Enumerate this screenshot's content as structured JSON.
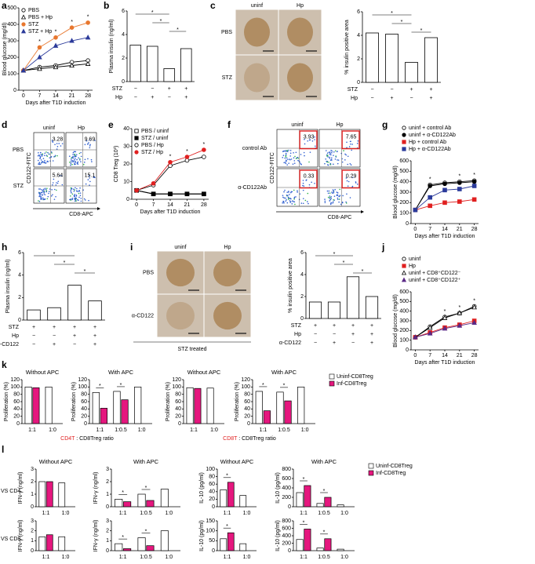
{
  "chart_data": [
    {
      "panel": "a",
      "type": "line",
      "ylabel": "Blood glucose (mg/dl)",
      "xlabel": "Days after T1D induction",
      "x": [
        0,
        7,
        14,
        21,
        28
      ],
      "xlim": [
        -2,
        30
      ],
      "xticks": [
        0,
        7,
        14,
        21,
        28
      ],
      "ylim": [
        0,
        500
      ],
      "yticks": [
        0,
        100,
        200,
        300,
        400,
        500
      ],
      "series": [
        {
          "name": "PBS",
          "marker": "circle",
          "color": "#000000",
          "fill": "#ffffff",
          "values": [
            120,
            140,
            150,
            170,
            180
          ]
        },
        {
          "name": "PBS + Hp",
          "marker": "triangle",
          "color": "#000000",
          "fill": "#ffffff",
          "values": [
            120,
            130,
            140,
            150,
            160
          ]
        },
        {
          "name": "STZ",
          "marker": "circle",
          "color": "#e8772e",
          "fill": "#e8772e",
          "values": [
            120,
            260,
            320,
            380,
            410
          ]
        },
        {
          "name": "STZ + Hp",
          "marker": "triangle",
          "color": "#2b3a9a",
          "fill": "#2b3a9a",
          "values": [
            120,
            200,
            270,
            300,
            320
          ]
        }
      ],
      "annotations": [
        "*",
        "*",
        "*",
        "*"
      ]
    },
    {
      "panel": "b",
      "type": "bar",
      "ylabel": "Plasma insulin (ng/ml)",
      "ylim": [
        0,
        6
      ],
      "yticks": [
        0,
        2,
        4,
        6
      ],
      "values": [
        3.1,
        3.0,
        1.1,
        2.8
      ],
      "color": "#000000",
      "fill": "#ffffff",
      "conditions": [
        {
          "name": "STZ",
          "signs": [
            "−",
            "−",
            "+",
            "+"
          ]
        },
        {
          "name": "Hp",
          "signs": [
            "−",
            "+",
            "−",
            "+"
          ]
        }
      ],
      "annotations": [
        "*",
        "*",
        "*"
      ]
    },
    {
      "panel": "c",
      "type": "image",
      "rows": [
        "PBS",
        "STZ"
      ],
      "cols": [
        "uninf",
        "Hp"
      ]
    },
    {
      "type": "bar",
      "ylabel": "% insulin positive area",
      "ylim": [
        0,
        6
      ],
      "yticks": [
        0,
        2,
        4,
        6
      ],
      "values": [
        4.2,
        4.1,
        1.7,
        3.8
      ],
      "color": "#000000",
      "fill": "#ffffff",
      "conditions": [
        {
          "name": "STZ",
          "signs": [
            "−",
            "−",
            "+",
            "+"
          ]
        },
        {
          "name": "Hp",
          "signs": [
            "−",
            "+",
            "−",
            "+"
          ]
        }
      ],
      "annotations": [
        "*",
        "*",
        "*"
      ]
    },
    {
      "panel": "d",
      "type": "flow",
      "rows": [
        "PBS",
        "STZ"
      ],
      "cols": [
        "uninf",
        "Hp"
      ],
      "values": [
        [
          "3.28",
          "9.69"
        ],
        [
          "5.64",
          "15.1"
        ]
      ],
      "ylabel": "CD122-FITC",
      "xlabel": "CD8-APC",
      "boxed": false
    },
    {
      "panel": "e",
      "type": "line",
      "ylabel": "CD8 Treg (10³)",
      "xlabel": "Days after T1D induction",
      "x": [
        0,
        7,
        14,
        21,
        28
      ],
      "xlim": [
        -2,
        30
      ],
      "xticks": [
        0,
        7,
        14,
        21,
        28
      ],
      "ylim": [
        0,
        40
      ],
      "yticks": [
        0,
        10,
        20,
        30,
        40
      ],
      "series": [
        {
          "name": "PBS / uninf",
          "marker": "square",
          "color": "#000000",
          "fill": "#ffffff",
          "values": [
            5,
            3,
            3,
            3,
            3
          ]
        },
        {
          "name": "STZ / uninf",
          "marker": "square",
          "color": "#000000",
          "fill": "#000000",
          "values": [
            5,
            3,
            3,
            3,
            3
          ]
        },
        {
          "name": "PBS / Hp",
          "marker": "circle",
          "color": "#000000",
          "fill": "#ffffff",
          "values": [
            5,
            8,
            19,
            22,
            24
          ]
        },
        {
          "name": "STZ / Hp",
          "marker": "circle",
          "color": "#e02020",
          "fill": "#e02020",
          "values": [
            5,
            9,
            21,
            24,
            28
          ]
        }
      ],
      "annotations": [
        "*",
        "*",
        "*"
      ]
    },
    {
      "panel": "f",
      "type": "flow",
      "rows": [
        "control Ab",
        "α-CD122Ab"
      ],
      "cols": [
        "uninf",
        "Hp"
      ],
      "values": [
        [
          "3.93",
          "7.65"
        ],
        [
          "0.33",
          "0.29"
        ]
      ],
      "ylabel": "CD122-FITC",
      "xlabel": "CD8-APC",
      "boxed": true
    },
    {
      "panel": "g",
      "type": "line",
      "ylabel": "Blood glucose (mg/dl)",
      "xlabel": "Days after T1D induction",
      "x": [
        0,
        7,
        14,
        21,
        28
      ],
      "xlim": [
        -2,
        30
      ],
      "xticks": [
        0,
        7,
        14,
        21,
        28
      ],
      "ylim": [
        0,
        600
      ],
      "yticks": [
        0,
        100,
        200,
        300,
        400,
        500,
        600
      ],
      "series": [
        {
          "name": "uninf + control Ab",
          "marker": "circle",
          "color": "#000000",
          "fill": "#ffffff",
          "values": [
            130,
            370,
            390,
            400,
            410
          ]
        },
        {
          "name": "uninf + α-CD122Ab",
          "marker": "circle",
          "color": "#000000",
          "fill": "#000000",
          "values": [
            130,
            360,
            380,
            390,
            400
          ]
        },
        {
          "name": "Hp + control Ab",
          "marker": "square",
          "color": "#e02020",
          "fill": "#e02020",
          "values": [
            130,
            170,
            200,
            210,
            230
          ]
        },
        {
          "name": "Hp + α-CD122Ab",
          "marker": "square",
          "color": "#2b3a9a",
          "fill": "#2b3a9a",
          "values": [
            130,
            250,
            320,
            330,
            360
          ]
        }
      ],
      "annotations": [
        "*",
        "*",
        "*"
      ]
    },
    {
      "panel": "h",
      "type": "bar",
      "ylabel": "Plasma insulin (ng/ml)",
      "ylim": [
        0,
        6
      ],
      "yticks": [
        0,
        2,
        4,
        6
      ],
      "values": [
        0.9,
        1.1,
        3.1,
        1.7
      ],
      "color": "#000000",
      "fill": "#ffffff",
      "conditions": [
        {
          "name": "STZ",
          "signs": [
            "+",
            "+",
            "+",
            "+"
          ]
        },
        {
          "name": "Hp",
          "signs": [
            "−",
            "−",
            "+",
            "+"
          ]
        },
        {
          "name": "α-CD122",
          "signs": [
            "−",
            "+",
            "−",
            "+"
          ]
        }
      ],
      "annotations": [
        "*",
        "*",
        "*"
      ]
    },
    {
      "panel": "i",
      "type": "image",
      "rows": [
        "PBS",
        "α-CD122"
      ],
      "cols": [
        "uninf",
        "Hp"
      ],
      "footer": "STZ treated"
    },
    {
      "type": "bar",
      "ylabel": "% insulin positive area",
      "ylim": [
        0,
        6
      ],
      "yticks": [
        0,
        2,
        4,
        6
      ],
      "values": [
        1.5,
        1.5,
        3.8,
        2.0
      ],
      "color": "#000000",
      "fill": "#ffffff",
      "conditions": [
        {
          "name": "STZ",
          "signs": [
            "+",
            "+",
            "+",
            "+"
          ]
        },
        {
          "name": "Hp",
          "signs": [
            "−",
            "−",
            "+",
            "+"
          ]
        },
        {
          "name": "α-CD122",
          "signs": [
            "−",
            "+",
            "−",
            "+"
          ]
        }
      ],
      "annotations": [
        "*",
        "*",
        "*"
      ]
    },
    {
      "panel": "j",
      "type": "line",
      "ylabel": "Blood glucose (mg/dl)",
      "xlabel": "Days after T1D induction",
      "x": [
        0,
        7,
        14,
        21,
        28
      ],
      "xlim": [
        -2,
        30
      ],
      "xticks": [
        0,
        7,
        14,
        21,
        28
      ],
      "ylim": [
        0,
        600
      ],
      "yticks": [
        0,
        100,
        200,
        300,
        400,
        500,
        600
      ],
      "series": [
        {
          "name": "uninf",
          "marker": "circle",
          "color": "#000000",
          "fill": "#ffffff",
          "values": [
            130,
            240,
            340,
            380,
            450
          ]
        },
        {
          "name": "Hp",
          "marker": "square",
          "color": "#e02020",
          "fill": "#e02020",
          "values": [
            130,
            180,
            230,
            260,
            300
          ]
        },
        {
          "name": "uninf + CD8⁺CD122⁻",
          "marker": "triangle",
          "color": "#000000",
          "fill": "#ffffff",
          "values": [
            130,
            230,
            330,
            380,
            440
          ]
        },
        {
          "name": "uninf + CD8⁺CD122⁺",
          "marker": "triangle",
          "color": "#5b2a86",
          "fill": "#5b2a86",
          "values": [
            130,
            170,
            220,
            250,
            280
          ]
        }
      ],
      "annotations": [
        "*",
        "*",
        "*"
      ]
    },
    {
      "panel": "k",
      "type": "bar",
      "title": "Without APC",
      "ylabel": "Proliferation (%)",
      "ylim": [
        0,
        120
      ],
      "yticks": [
        0,
        20,
        40,
        60,
        80,
        100,
        120
      ],
      "categories": [
        "1:1",
        "1:0"
      ],
      "series": [
        {
          "name": "Uninf-CD8Treg",
          "color": "#ffffff",
          "values": [
            100,
            100
          ]
        },
        {
          "name": "Inf-CD8Treg",
          "color": "#e5177e",
          "values": [
            98,
            null
          ]
        }
      ],
      "xlabel_parts": [
        "CD4T",
        " : CD8Treg ratio"
      ],
      "xlabel_color": "#e02020"
    },
    {
      "type": "bar",
      "title": "With APC",
      "ylabel": "Proliferation (%)",
      "ylim": [
        0,
        120
      ],
      "yticks": [
        0,
        20,
        40,
        60,
        80,
        100,
        120
      ],
      "categories": [
        "1:1",
        "1:0.5",
        "1:0"
      ],
      "series": [
        {
          "name": "Uninf-CD8Treg",
          "color": "#ffffff",
          "values": [
            85,
            88,
            100
          ]
        },
        {
          "name": "Inf-CD8Treg",
          "color": "#e5177e",
          "values": [
            42,
            65,
            null
          ]
        }
      ],
      "annotations": [
        "*",
        "*"
      ]
    },
    {
      "type": "bar",
      "title": "Without APC",
      "ylabel": "Proliferation (%)",
      "ylim": [
        0,
        120
      ],
      "yticks": [
        0,
        20,
        40,
        60,
        80,
        100,
        120
      ],
      "categories": [
        "1:1",
        "1:0"
      ],
      "series": [
        {
          "name": "Uninf-CD8Treg",
          "color": "#ffffff",
          "values": [
            98,
            97
          ]
        },
        {
          "name": "Inf-CD8Treg",
          "color": "#e5177e",
          "values": [
            96,
            null
          ]
        }
      ],
      "xlabel_parts": [
        "CD8T",
        " : CD8Treg ratio"
      ],
      "xlabel_color": "#e02020"
    },
    {
      "type": "bar",
      "title": "With APC",
      "ylabel": "Proliferation (%)",
      "ylim": [
        0,
        120
      ],
      "yticks": [
        0,
        20,
        40,
        60,
        80,
        100,
        120
      ],
      "categories": [
        "1:1",
        "1:0.5",
        "1:0"
      ],
      "series": [
        {
          "name": "Uninf-CD8Treg",
          "color": "#ffffff",
          "values": [
            88,
            86,
            100
          ]
        },
        {
          "name": "Inf-CD8Treg",
          "color": "#e5177e",
          "values": [
            35,
            62,
            null
          ]
        }
      ],
      "annotations": [
        "*",
        "*"
      ]
    },
    {
      "panel": "l",
      "type": "bar",
      "row_label": "VS CD4",
      "title": "Without APC",
      "ylabel": "IFN-γ (ng/ml)",
      "ylim": [
        0,
        3
      ],
      "yticks": [
        0,
        1,
        2,
        3
      ],
      "categories": [
        "1:1",
        "1:0"
      ],
      "series": [
        {
          "name": "Uninf-CD8Treg",
          "color": "#ffffff",
          "values": [
            2.0,
            1.9
          ]
        },
        {
          "name": "Inf-CD8Treg",
          "color": "#e5177e",
          "values": [
            2.0,
            null
          ]
        }
      ]
    },
    {
      "type": "bar",
      "title": "With APC",
      "ylabel": "IFN-γ (ng/ml)",
      "ylim": [
        0,
        3
      ],
      "yticks": [
        0,
        1,
        2,
        3
      ],
      "categories": [
        "1:1",
        "1:0.5",
        "1:0"
      ],
      "series": [
        {
          "name": "Uninf-CD8Treg",
          "color": "#ffffff",
          "values": [
            0.6,
            1.0,
            1.4
          ]
        },
        {
          "name": "Inf-CD8Treg",
          "color": "#e5177e",
          "values": [
            0.4,
            0.5,
            null
          ]
        }
      ],
      "annotations": [
        "*",
        "*"
      ]
    },
    {
      "type": "bar",
      "title": "Without APC",
      "ylabel": "IL-10 (pg/ml)",
      "ylim": [
        0,
        100
      ],
      "yticks": [
        0,
        20,
        40,
        60,
        80,
        100
      ],
      "categories": [
        "1:1",
        "1:0"
      ],
      "series": [
        {
          "name": "Uninf-CD8Treg",
          "color": "#ffffff",
          "values": [
            45,
            30
          ]
        },
        {
          "name": "Inf-CD8Treg",
          "color": "#e5177e",
          "values": [
            65,
            null
          ]
        }
      ],
      "annotations": [
        "*"
      ]
    },
    {
      "type": "bar",
      "title": "With APC",
      "ylabel": "IL-10 (pg/ml)",
      "ylim": [
        0,
        800
      ],
      "yticks": [
        0,
        200,
        400,
        600,
        800
      ],
      "categories": [
        "1:1",
        "1:0.5",
        "1:0"
      ],
      "series": [
        {
          "name": "Uninf-CD8Treg",
          "color": "#ffffff",
          "values": [
            300,
            70,
            40
          ]
        },
        {
          "name": "Inf-CD8Treg",
          "color": "#e5177e",
          "values": [
            450,
            200,
            null
          ]
        }
      ],
      "annotations": [
        "*",
        "*"
      ]
    },
    {
      "type": "bar",
      "row_label": "VS CD8",
      "ylabel": "IFN-γ (ng/ml)",
      "ylim": [
        0,
        3
      ],
      "yticks": [
        0,
        1,
        2,
        3
      ],
      "categories": [
        "1:1",
        "1:0"
      ],
      "series": [
        {
          "name": "Uninf-CD8Treg",
          "color": "#ffffff",
          "values": [
            1.4,
            1.4
          ]
        },
        {
          "name": "Inf-CD8Treg",
          "color": "#e5177e",
          "values": [
            1.6,
            null
          ]
        }
      ]
    },
    {
      "type": "bar",
      "ylabel": "IFN-γ (ng/ml)",
      "ylim": [
        0,
        3
      ],
      "yticks": [
        0,
        1,
        2,
        3
      ],
      "categories": [
        "1:1",
        "1:0.5",
        "1:0"
      ],
      "series": [
        {
          "name": "Uninf-CD8Treg",
          "color": "#ffffff",
          "values": [
            0.7,
            1.3,
            2.0
          ]
        },
        {
          "name": "Inf-CD8Treg",
          "color": "#e5177e",
          "values": [
            0.2,
            0.5,
            null
          ]
        }
      ],
      "annotations": [
        "*",
        "*"
      ]
    },
    {
      "type": "bar",
      "ylabel": "IL-10 (pg/ml)",
      "ylim": [
        0,
        150
      ],
      "yticks": [
        0,
        50,
        100,
        150
      ],
      "categories": [
        "1:1",
        "1:0"
      ],
      "series": [
        {
          "name": "Uninf-CD8Treg",
          "color": "#ffffff",
          "values": [
            60,
            35
          ]
        },
        {
          "name": "Inf-CD8Treg",
          "color": "#e5177e",
          "values": [
            90,
            null
          ]
        }
      ],
      "annotations": [
        "*"
      ]
    },
    {
      "type": "bar",
      "ylabel": "IL-10 (pg/ml)",
      "ylim": [
        0,
        800
      ],
      "yticks": [
        0,
        200,
        400,
        600,
        800
      ],
      "categories": [
        "1:1",
        "1:0.5",
        "1:0"
      ],
      "series": [
        {
          "name": "Uninf-CD8Treg",
          "color": "#ffffff",
          "values": [
            300,
            70,
            40
          ]
        },
        {
          "name": "Inf-CD8Treg",
          "color": "#e5177e",
          "values": [
            580,
            320,
            null
          ]
        }
      ],
      "annotations": [
        "*",
        "*"
      ]
    }
  ]
}
